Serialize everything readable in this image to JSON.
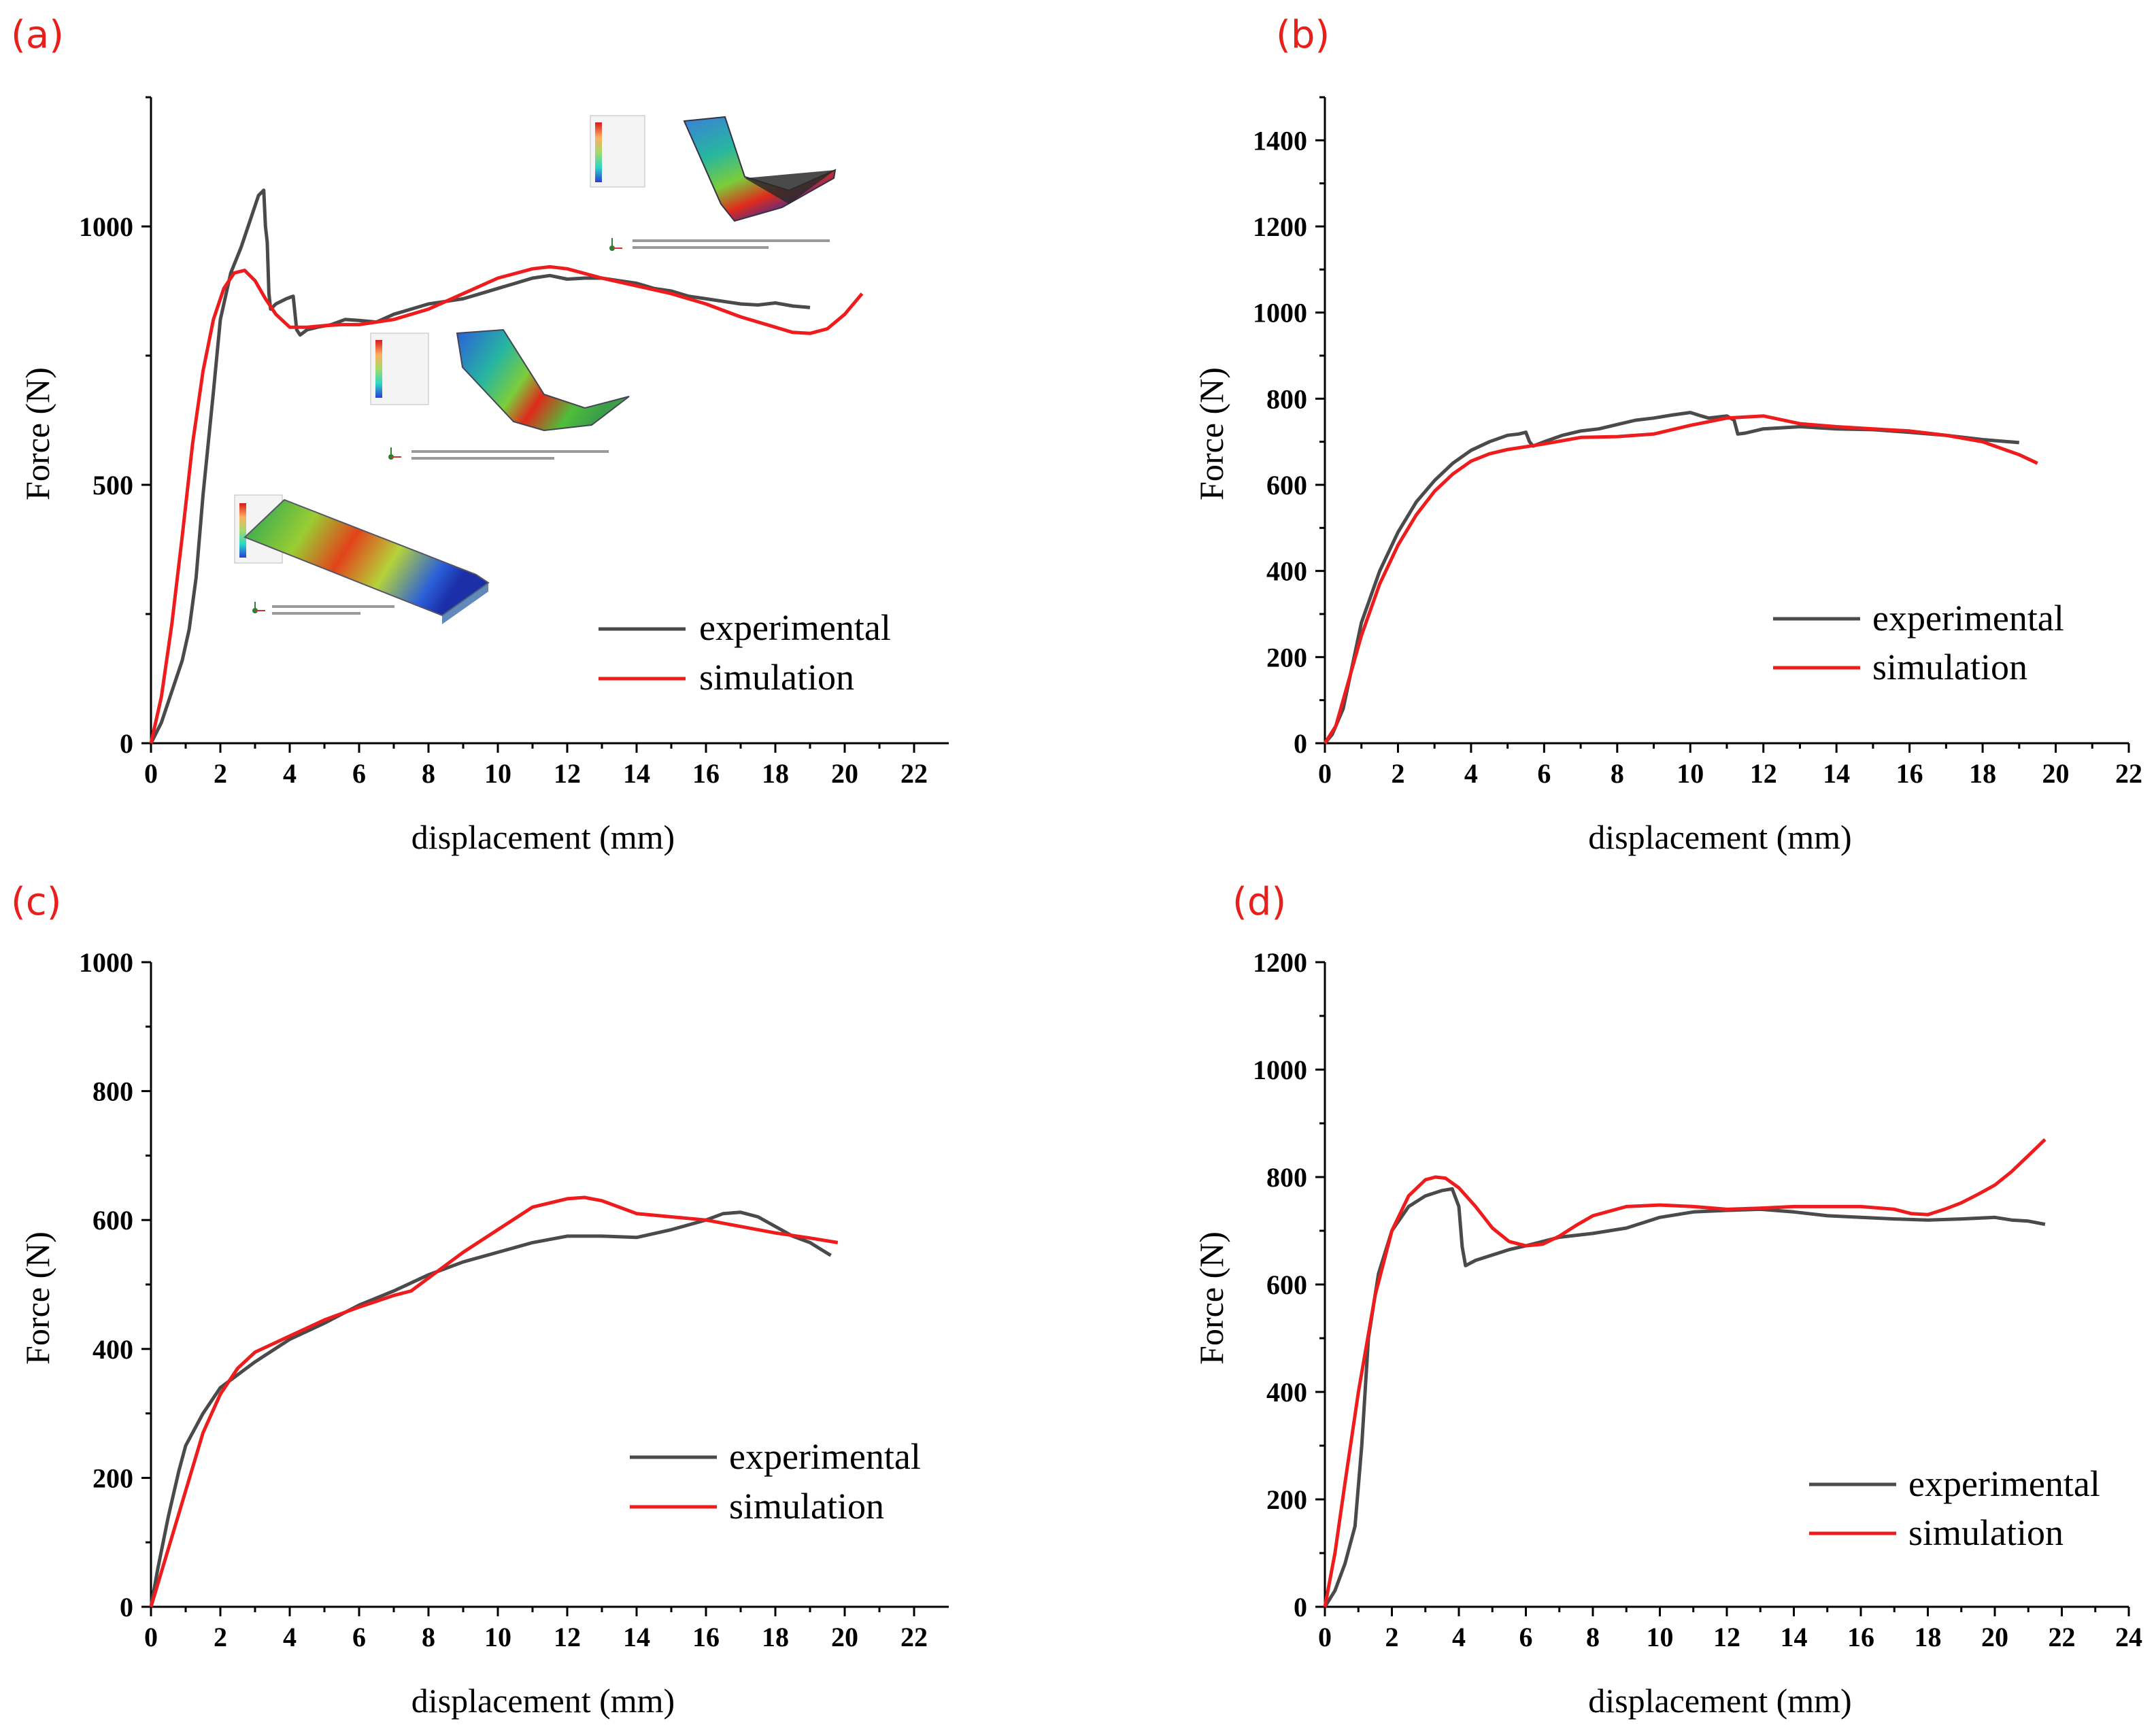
{
  "chart_data": [
    {
      "panel": "(a)",
      "type": "line",
      "xlabel": "displacement (mm)",
      "ylabel": "Force (N)",
      "xlim": [
        0,
        23
      ],
      "ylim": [
        0,
        1250
      ],
      "xticks": [
        0,
        2,
        4,
        6,
        8,
        10,
        12,
        14,
        16,
        18,
        20,
        22
      ],
      "yticks": [
        0,
        500,
        1000
      ],
      "legend": {
        "position": "lower-right",
        "labels": [
          "experimental",
          "simulation"
        ]
      },
      "series": [
        {
          "name": "experimental",
          "color": "#4a4a4a",
          "x": [
            0,
            0.3,
            0.6,
            0.9,
            1.1,
            1.3,
            1.5,
            1.8,
            2.0,
            2.3,
            2.6,
            2.9,
            3.1,
            3.25,
            3.3,
            3.35,
            3.4,
            3.45,
            3.6,
            3.9,
            4.1,
            4.2,
            4.3,
            4.5,
            4.8,
            5.2,
            5.6,
            6.0,
            6.5,
            7.0,
            7.5,
            8.0,
            8.5,
            9.0,
            9.5,
            10.0,
            10.5,
            11.0,
            11.5,
            12.0,
            12.5,
            13.0,
            13.5,
            14.0,
            14.5,
            15.0,
            15.5,
            16.0,
            16.5,
            17.0,
            17.5,
            18.0,
            18.5,
            19.0
          ],
          "y": [
            0,
            40,
            100,
            160,
            220,
            320,
            480,
            680,
            820,
            910,
            960,
            1020,
            1060,
            1070,
            1000,
            970,
            870,
            840,
            850,
            860,
            865,
            800,
            790,
            800,
            805,
            810,
            820,
            818,
            815,
            830,
            840,
            850,
            855,
            860,
            870,
            880,
            890,
            900,
            905,
            898,
            900,
            900,
            895,
            890,
            880,
            875,
            865,
            860,
            855,
            850,
            848,
            852,
            846,
            843
          ]
        },
        {
          "name": "simulation",
          "color": "#ee1c1c",
          "x": [
            0,
            0.3,
            0.6,
            0.9,
            1.2,
            1.5,
            1.8,
            2.1,
            2.4,
            2.7,
            3.0,
            3.3,
            3.6,
            4.0,
            4.5,
            5.0,
            5.5,
            6.0,
            7.0,
            8.0,
            9.0,
            10.0,
            11.0,
            11.5,
            12.0,
            13.0,
            14.0,
            15.0,
            16.0,
            17.0,
            18.0,
            18.5,
            19.0,
            19.5,
            20.0,
            20.5
          ],
          "y": [
            0,
            90,
            230,
            400,
            580,
            720,
            820,
            880,
            910,
            915,
            895,
            860,
            830,
            805,
            805,
            808,
            810,
            810,
            820,
            840,
            870,
            900,
            918,
            922,
            918,
            900,
            885,
            870,
            850,
            825,
            805,
            795,
            793,
            802,
            830,
            870
          ]
        }
      ],
      "inset_images": [
        {
          "name": "fem-contour-flat-plate",
          "depicts": "simulated specimen contour plot at initial bending stage"
        },
        {
          "name": "fem-contour-mid-bend",
          "depicts": "simulated specimen contour plot at mid bending stage"
        },
        {
          "name": "fem-contour-full-bend",
          "depicts": "simulated specimen contour plot at final bending stage"
        }
      ]
    },
    {
      "panel": "(b)",
      "type": "line",
      "xlabel": "displacement (mm)",
      "ylabel": "Force (N)",
      "xlim": [
        0,
        22
      ],
      "ylim": [
        0,
        1500
      ],
      "xticks": [
        0,
        2,
        4,
        6,
        8,
        10,
        12,
        14,
        16,
        18,
        20,
        22
      ],
      "yticks": [
        0,
        200,
        400,
        600,
        800,
        1000,
        1200,
        1400
      ],
      "legend": {
        "position": "lower-right",
        "labels": [
          "experimental",
          "simulation"
        ]
      },
      "series": [
        {
          "name": "experimental",
          "color": "#4a4a4a",
          "x": [
            0,
            0.2,
            0.5,
            0.8,
            1.0,
            1.5,
            2.0,
            2.5,
            3.0,
            3.5,
            4.0,
            4.5,
            5.0,
            5.3,
            5.5,
            5.6,
            5.7,
            6.0,
            6.5,
            7.0,
            7.5,
            8.0,
            8.5,
            9.0,
            9.5,
            10.0,
            10.3,
            10.5,
            11.0,
            11.2,
            11.3,
            11.5,
            12.0,
            13.0,
            14.0,
            15.0,
            16.0,
            17.0,
            18.0,
            19.0
          ],
          "y": [
            0,
            20,
            80,
            200,
            280,
            400,
            490,
            560,
            610,
            650,
            680,
            700,
            715,
            718,
            722,
            700,
            690,
            700,
            715,
            725,
            730,
            740,
            750,
            755,
            762,
            768,
            760,
            755,
            760,
            750,
            718,
            720,
            730,
            735,
            730,
            728,
            722,
            715,
            705,
            698
          ]
        },
        {
          "name": "simulation",
          "color": "#ee1c1c",
          "x": [
            0,
            0.3,
            0.6,
            1.0,
            1.5,
            2.0,
            2.5,
            3.0,
            3.5,
            4.0,
            4.5,
            5.0,
            6.0,
            7.0,
            8.0,
            9.0,
            10.0,
            11.0,
            12.0,
            13.0,
            14.0,
            15.0,
            16.0,
            17.0,
            18.0,
            19.0,
            19.5
          ],
          "y": [
            0,
            40,
            130,
            250,
            370,
            460,
            530,
            585,
            625,
            655,
            672,
            682,
            695,
            710,
            712,
            718,
            738,
            755,
            760,
            742,
            735,
            730,
            725,
            715,
            700,
            670,
            650
          ]
        }
      ]
    },
    {
      "panel": "(c)",
      "type": "line",
      "xlabel": "displacement (mm)",
      "ylabel": "Force (N)",
      "xlim": [
        0,
        23
      ],
      "ylim": [
        0,
        1000
      ],
      "xticks": [
        0,
        2,
        4,
        6,
        8,
        10,
        12,
        14,
        16,
        18,
        20,
        22
      ],
      "yticks": [
        0,
        200,
        400,
        600,
        800,
        1000
      ],
      "legend": {
        "position": "lower-right",
        "labels": [
          "experimental",
          "simulation"
        ]
      },
      "series": [
        {
          "name": "experimental",
          "color": "#4a4a4a",
          "x": [
            0,
            0.2,
            0.5,
            0.8,
            1.0,
            1.5,
            2.0,
            3.0,
            4.0,
            5.0,
            6.0,
            7.0,
            8.0,
            9.0,
            10.0,
            11.0,
            12.0,
            13.0,
            14.0,
            15.0,
            16.0,
            16.5,
            17.0,
            17.5,
            18.0,
            18.5,
            19.0,
            19.3,
            19.6
          ],
          "y": [
            0,
            60,
            140,
            210,
            250,
            300,
            340,
            380,
            415,
            440,
            468,
            490,
            515,
            535,
            550,
            565,
            575,
            575,
            573,
            585,
            600,
            610,
            612,
            605,
            590,
            575,
            565,
            555,
            545
          ]
        },
        {
          "name": "simulation",
          "color": "#ee1c1c",
          "x": [
            0,
            0.5,
            1.0,
            1.5,
            2.0,
            2.5,
            3.0,
            4.0,
            5.0,
            6.0,
            7.0,
            7.5,
            8.0,
            9.0,
            10.0,
            11.0,
            12.0,
            12.5,
            13.0,
            14.0,
            15.0,
            16.0,
            17.0,
            18.0,
            19.0,
            19.8
          ],
          "y": [
            0,
            90,
            180,
            270,
            330,
            370,
            395,
            420,
            445,
            465,
            483,
            490,
            510,
            550,
            585,
            620,
            633,
            635,
            630,
            610,
            605,
            600,
            590,
            580,
            572,
            565
          ]
        }
      ]
    },
    {
      "panel": "(d)",
      "type": "line",
      "xlabel": "displacement (mm)",
      "ylabel": "Force (N)",
      "xlim": [
        0,
        24
      ],
      "ylim": [
        0,
        1200
      ],
      "xticks": [
        0,
        2,
        4,
        6,
        8,
        10,
        12,
        14,
        16,
        18,
        20,
        22,
        24
      ],
      "yticks": [
        0,
        200,
        400,
        600,
        800,
        1000,
        1200
      ],
      "legend": {
        "position": "lower-right",
        "labels": [
          "experimental",
          "simulation"
        ]
      },
      "series": [
        {
          "name": "experimental",
          "color": "#4a4a4a",
          "x": [
            0,
            0.3,
            0.6,
            0.9,
            1.1,
            1.3,
            1.6,
            2.0,
            2.5,
            3.0,
            3.5,
            3.8,
            4.0,
            4.1,
            4.2,
            4.5,
            5.0,
            5.5,
            6.0,
            6.5,
            7.0,
            8.0,
            9.0,
            10.0,
            11.0,
            12.0,
            13.0,
            14.0,
            15.0,
            16.0,
            17.0,
            18.0,
            19.0,
            20.0,
            20.5,
            21.0,
            21.5
          ],
          "y": [
            0,
            30,
            80,
            150,
            300,
            500,
            620,
            700,
            745,
            765,
            775,
            778,
            745,
            670,
            635,
            645,
            655,
            665,
            672,
            680,
            688,
            695,
            705,
            725,
            735,
            738,
            740,
            735,
            728,
            725,
            722,
            720,
            722,
            725,
            720,
            718,
            712
          ]
        },
        {
          "name": "simulation",
          "color": "#ee1c1c",
          "x": [
            0,
            0.3,
            0.6,
            1.0,
            1.5,
            2.0,
            2.5,
            3.0,
            3.3,
            3.6,
            4.0,
            4.5,
            5.0,
            5.5,
            6.0,
            6.5,
            7.0,
            7.5,
            8.0,
            9.0,
            10.0,
            11.0,
            12.0,
            13.0,
            14.0,
            15.0,
            16.0,
            17.0,
            17.5,
            18.0,
            18.5,
            19.0,
            19.5,
            20.0,
            20.5,
            21.0,
            21.5
          ],
          "y": [
            0,
            100,
            230,
            400,
            580,
            700,
            765,
            795,
            800,
            798,
            780,
            745,
            705,
            680,
            672,
            675,
            690,
            710,
            728,
            745,
            748,
            745,
            740,
            742,
            745,
            745,
            745,
            740,
            732,
            730,
            740,
            752,
            768,
            785,
            810,
            840,
            870
          ]
        }
      ]
    }
  ]
}
